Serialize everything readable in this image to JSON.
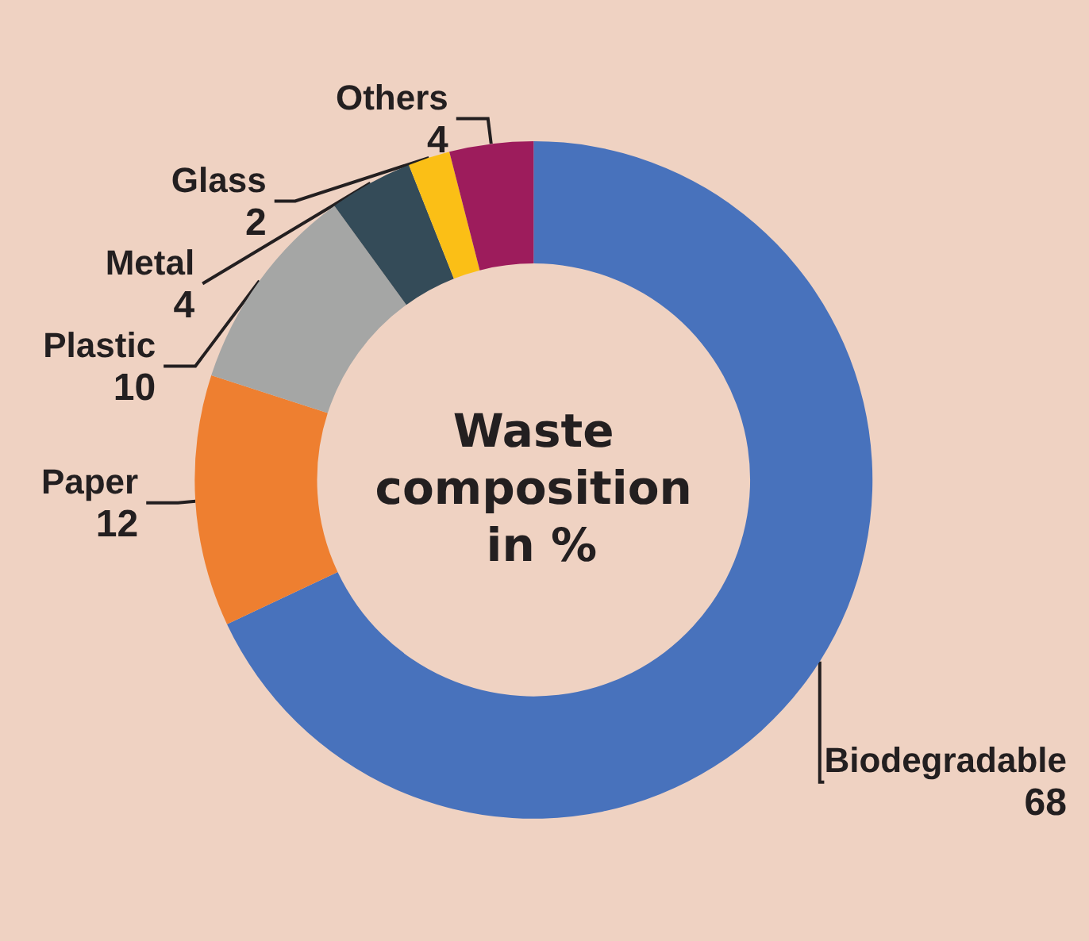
{
  "chart_data": {
    "type": "donut",
    "title": "Waste composition in %",
    "categories": [
      "Biodegradable",
      "Paper",
      "Plastic",
      "Metal",
      "Glass",
      "Others"
    ],
    "values": [
      68,
      12,
      10,
      4,
      2,
      4
    ],
    "colors": [
      "#4872bc",
      "#ee7f30",
      "#a5a6a5",
      "#344b58",
      "#fbbf16",
      "#9d1c5c"
    ],
    "data_labels": true,
    "legend": false
  }
}
